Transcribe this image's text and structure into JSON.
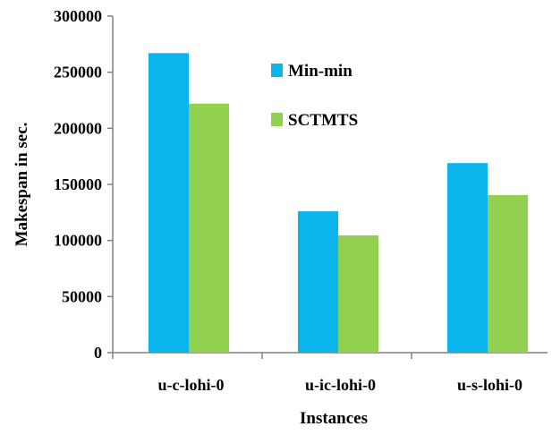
{
  "chart_data": {
    "type": "bar",
    "title": "",
    "xlabel": "Instances",
    "ylabel": "Makespan in sec.",
    "categories": [
      "u-c-lohi-0",
      "u-ic-lohi-0",
      "u-s-lohi-0"
    ],
    "series": [
      {
        "name": "Min-min",
        "color": "#0CB4EC",
        "values": [
          267000,
          126000,
          169000
        ]
      },
      {
        "name": "SCTMTS",
        "color": "#92D050",
        "values": [
          222000,
          104500,
          140500
        ]
      }
    ],
    "ylim": [
      0,
      300000
    ],
    "yticks": [
      "0",
      "50000",
      "100000",
      "150000",
      "200000",
      "250000",
      "300000"
    ],
    "ytick_values": [
      0,
      50000,
      100000,
      150000,
      200000,
      250000,
      300000
    ],
    "grid": false,
    "legend_position": "top-right, inside plot"
  }
}
